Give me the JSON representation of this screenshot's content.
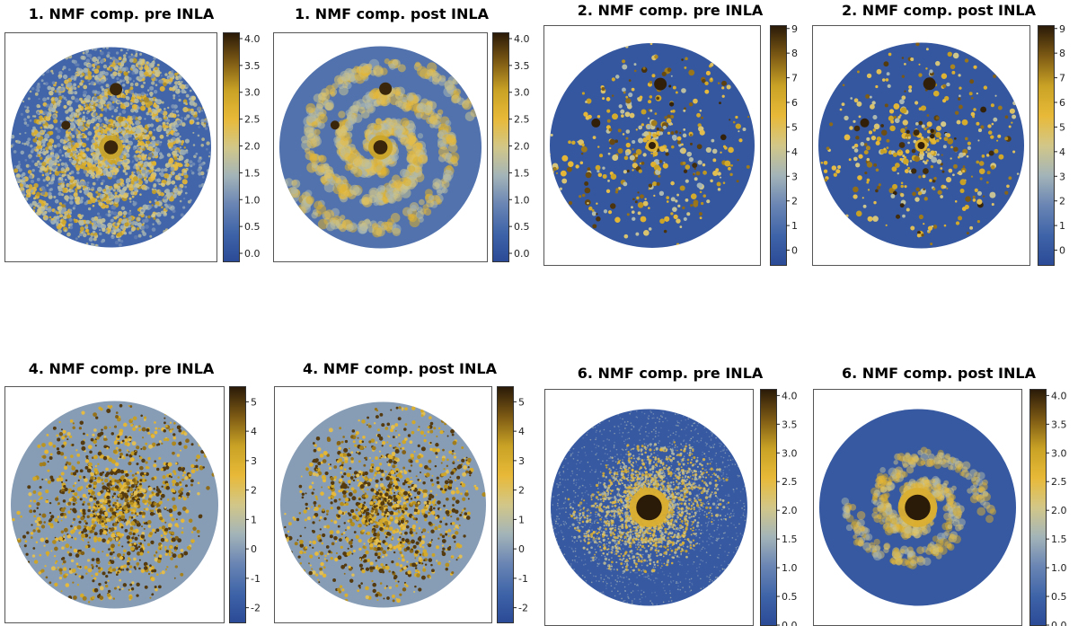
{
  "colormap": [
    "#2b4a97",
    "#3f64a8",
    "#6a85b4",
    "#a3b4b8",
    "#d2c788",
    "#e8b938",
    "#c9a225",
    "#7d5a14",
    "#2a1a08"
  ],
  "chart_data": [
    {
      "type": "heatmap",
      "title": "1. NMF comp. pre INLA",
      "colorbar_ticks": [
        "0.0",
        "0.5",
        "1.0",
        "1.5",
        "2.0",
        "2.5",
        "3.0",
        "3.5",
        "4.0"
      ],
      "colorbar_range": [
        -0.15,
        4.1
      ],
      "pattern": "spiral-dense",
      "background_value": 0.4
    },
    {
      "type": "heatmap",
      "title": "1. NMF comp. post INLA",
      "colorbar_ticks": [
        "0.0",
        "0.5",
        "1.0",
        "1.5",
        "2.0",
        "2.5",
        "3.0",
        "3.5",
        "4.0"
      ],
      "colorbar_range": [
        -0.15,
        4.1
      ],
      "pattern": "spiral-smooth",
      "background_value": 0.6
    },
    {
      "type": "heatmap",
      "title": "2. NMF comp. pre INLA",
      "colorbar_ticks": [
        "0",
        "1",
        "2",
        "3",
        "4",
        "5",
        "6",
        "7",
        "8",
        "9"
      ],
      "colorbar_range": [
        -0.6,
        9.1
      ],
      "pattern": "sparse-clumps",
      "background_value": 0.0
    },
    {
      "type": "heatmap",
      "title": "2. NMF comp. post INLA",
      "colorbar_ticks": [
        "0",
        "1",
        "2",
        "3",
        "4",
        "5",
        "6",
        "7",
        "8",
        "9"
      ],
      "colorbar_range": [
        -0.6,
        9.1
      ],
      "pattern": "sparse-clumps",
      "background_value": 0.0
    },
    {
      "type": "heatmap",
      "title": "4. NMF comp. pre INLA",
      "colorbar_ticks": [
        "-2",
        "-1",
        "0",
        "1",
        "2",
        "3",
        "4",
        "5"
      ],
      "colorbar_range": [
        -2.5,
        5.5
      ],
      "pattern": "speckle-arms",
      "background_value": 0.0
    },
    {
      "type": "heatmap",
      "title": "4. NMF comp. post INLA",
      "colorbar_ticks": [
        "-2",
        "-1",
        "0",
        "1",
        "2",
        "3",
        "4",
        "5"
      ],
      "colorbar_range": [
        -2.5,
        5.5
      ],
      "pattern": "speckle-arms",
      "background_value": 0.0
    },
    {
      "type": "heatmap",
      "title": "6. NMF comp. pre INLA",
      "colorbar_ticks": [
        "0.0",
        "0.5",
        "1.0",
        "1.5",
        "2.0",
        "2.5",
        "3.0",
        "3.5",
        "4.0"
      ],
      "colorbar_range": [
        0.0,
        4.1
      ],
      "pattern": "core-noisy",
      "background_value": 0.3
    },
    {
      "type": "heatmap",
      "title": "6. NMF comp. post INLA",
      "colorbar_ticks": [
        "0.0",
        "0.5",
        "1.0",
        "1.5",
        "2.0",
        "2.5",
        "3.0",
        "3.5",
        "4.0"
      ],
      "colorbar_range": [
        0.0,
        4.1
      ],
      "pattern": "core-smooth",
      "background_value": 0.3
    }
  ]
}
